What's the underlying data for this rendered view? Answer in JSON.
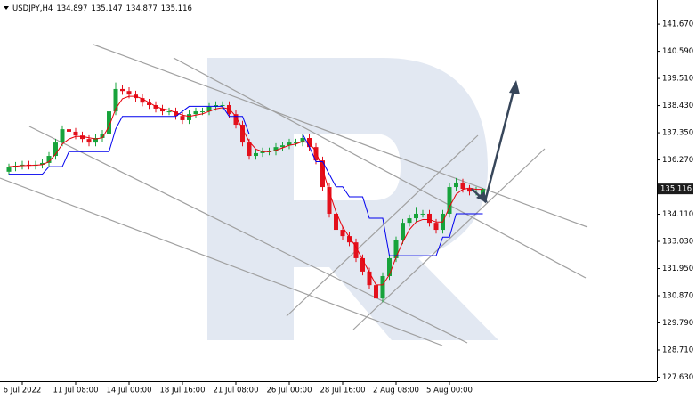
{
  "chart_data": {
    "type": "candlestick",
    "title": "USDJPY,H4",
    "categories": [
      null,
      null,
      "6 Jul 2022",
      null,
      null,
      null,
      null,
      null,
      null,
      null,
      "11 Jul 08:00",
      null,
      null,
      null,
      null,
      null,
      null,
      null,
      "14 Jul 00:00",
      null,
      null,
      null,
      null,
      null,
      null,
      null,
      "18 Jul 16:00",
      null,
      null,
      null,
      null,
      null,
      null,
      null,
      "21 Jul 08:00",
      null,
      null,
      null,
      null,
      null,
      null,
      null,
      "26 Jul 00:00",
      null,
      null,
      null,
      null,
      null,
      null,
      null,
      "28 Jul 16:00",
      null,
      null,
      null,
      null,
      null,
      null,
      null,
      "2 Aug 08:00",
      null,
      null,
      null,
      null,
      null,
      null,
      null,
      "5 Aug 00:00",
      null,
      null,
      null,
      null,
      null
    ],
    "open": [
      135.8,
      135.97,
      136.04,
      136.08,
      136.04,
      136.08,
      136.15,
      136.43,
      136.96,
      137.49,
      137.39,
      137.24,
      137.1,
      136.96,
      137.14,
      137.31,
      138.2,
      139.09,
      139.01,
      138.87,
      138.73,
      138.55,
      138.45,
      138.31,
      138.2,
      138.2,
      138.02,
      137.85,
      138.09,
      138.2,
      138.2,
      138.38,
      138.45,
      138.45,
      138.09,
      137.67,
      136.96,
      136.43,
      136.54,
      136.61,
      136.61,
      136.78,
      136.85,
      136.96,
      136.96,
      137.14,
      136.78,
      136.25,
      135.19,
      134.13,
      133.49,
      133.24,
      132.99,
      132.36,
      131.83,
      131.29,
      130.76,
      131.65,
      132.36,
      133.07,
      133.77,
      133.95,
      134.13,
      134.13,
      133.77,
      133.49,
      134.13,
      135.19,
      135.37,
      135.12,
      135.01,
      134.897
    ],
    "high": [
      136.12,
      136.19,
      136.23,
      136.23,
      136.23,
      136.3,
      136.58,
      137.11,
      137.64,
      137.64,
      137.54,
      137.39,
      137.25,
      137.29,
      137.46,
      138.35,
      139.35,
      139.24,
      139.16,
      139.02,
      138.88,
      138.7,
      138.6,
      138.46,
      138.35,
      138.35,
      138.17,
      138.24,
      138.35,
      138.35,
      138.53,
      138.6,
      138.6,
      138.6,
      138.24,
      137.82,
      137.11,
      136.69,
      136.76,
      136.76,
      136.93,
      137.0,
      137.11,
      137.11,
      137.29,
      137.29,
      136.93,
      136.4,
      135.34,
      134.28,
      133.64,
      133.39,
      133.14,
      132.51,
      131.98,
      131.44,
      131.8,
      132.51,
      133.22,
      133.92,
      134.1,
      134.4,
      134.28,
      134.28,
      133.92,
      134.28,
      135.34,
      135.55,
      135.52,
      135.27,
      135.2,
      135.147
    ],
    "low": [
      135.65,
      135.82,
      135.89,
      135.89,
      135.89,
      135.93,
      136.0,
      136.28,
      136.81,
      137.24,
      137.09,
      136.95,
      136.81,
      136.81,
      136.99,
      137.16,
      138.05,
      138.86,
      138.72,
      138.58,
      138.4,
      138.3,
      138.16,
      138.05,
      138.05,
      137.87,
      137.7,
      137.7,
      137.94,
      138.05,
      138.05,
      138.23,
      138.3,
      137.94,
      137.52,
      136.81,
      136.28,
      136.28,
      136.39,
      136.46,
      136.46,
      136.63,
      136.7,
      136.81,
      136.81,
      136.63,
      136.1,
      135.04,
      133.98,
      133.34,
      133.09,
      132.84,
      132.21,
      131.68,
      131.14,
      130.5,
      130.61,
      131.5,
      132.21,
      132.92,
      133.62,
      133.8,
      133.98,
      133.62,
      133.34,
      133.34,
      133.98,
      135.04,
      134.97,
      134.86,
      134.86,
      134.877
    ],
    "close": [
      135.97,
      136.04,
      136.08,
      136.04,
      136.08,
      136.15,
      136.43,
      136.96,
      137.49,
      137.39,
      137.24,
      137.1,
      136.96,
      137.14,
      137.31,
      138.2,
      139.09,
      139.01,
      138.87,
      138.73,
      138.55,
      138.45,
      138.31,
      138.2,
      138.2,
      138.02,
      137.85,
      138.09,
      138.2,
      138.2,
      138.38,
      138.45,
      138.45,
      138.09,
      137.67,
      136.96,
      136.43,
      136.54,
      136.61,
      136.61,
      136.78,
      136.85,
      136.96,
      136.96,
      137.14,
      136.78,
      136.25,
      135.19,
      134.13,
      133.49,
      133.24,
      132.99,
      132.36,
      131.83,
      131.29,
      130.76,
      131.65,
      132.36,
      133.07,
      133.77,
      133.95,
      134.13,
      134.13,
      133.77,
      133.49,
      134.13,
      135.19,
      135.37,
      135.12,
      135.01,
      135.05,
      135.116
    ],
    "up_color": "#17a33b",
    "down_color": "#e3101c",
    "overlays": [
      {
        "color": "#e8000b",
        "values": [
          136.0,
          136.02,
          136.04,
          136.05,
          136.06,
          136.08,
          136.2,
          136.5,
          136.9,
          137.1,
          137.2,
          137.2,
          137.15,
          137.1,
          137.15,
          137.6,
          138.3,
          138.7,
          138.8,
          138.8,
          138.7,
          138.55,
          138.4,
          138.3,
          138.25,
          138.15,
          138.05,
          138.0,
          138.05,
          138.1,
          138.2,
          138.3,
          138.35,
          138.3,
          138.0,
          137.5,
          137.0,
          136.7,
          136.6,
          136.6,
          136.65,
          136.75,
          136.85,
          136.9,
          137.0,
          136.95,
          136.6,
          135.9,
          135.0,
          134.2,
          133.6,
          133.2,
          132.8,
          132.3,
          131.8,
          131.3,
          131.3,
          131.7,
          132.4,
          133.0,
          133.5,
          133.8,
          133.9,
          133.9,
          133.8,
          133.8,
          134.4,
          134.9,
          135.1,
          135.15,
          135.1,
          135.1
        ]
      },
      {
        "color": "#0000ee",
        "values": [
          135.7,
          135.7,
          135.7,
          135.7,
          135.7,
          135.7,
          136.0,
          136.0,
          136.0,
          136.6,
          136.6,
          136.6,
          136.6,
          136.6,
          136.6,
          136.6,
          137.5,
          138.0,
          138.0,
          138.0,
          138.0,
          138.0,
          138.0,
          138.0,
          138.0,
          138.0,
          138.2,
          138.4,
          138.4,
          138.4,
          138.4,
          138.4,
          138.4,
          138.0,
          138.0,
          138.0,
          137.3,
          137.3,
          137.3,
          137.3,
          137.3,
          137.3,
          137.3,
          137.3,
          137.3,
          136.8,
          136.2,
          136.2,
          135.7,
          135.2,
          135.2,
          134.8,
          134.8,
          134.8,
          133.95,
          133.95,
          133.95,
          132.46,
          132.46,
          132.46,
          132.46,
          132.46,
          132.46,
          132.46,
          132.46,
          133.2,
          133.2,
          134.13,
          134.13,
          134.13,
          134.13,
          134.13
        ]
      }
    ],
    "ylim": [
      127.47,
      142.63
    ],
    "yticks": [
      {
        "value": 141.67,
        "label": "141.670"
      },
      {
        "value": 140.59,
        "label": "140.590"
      },
      {
        "value": 139.51,
        "label": "139.510"
      },
      {
        "value": 138.43,
        "label": "138.430"
      },
      {
        "value": 137.35,
        "label": "137.350"
      },
      {
        "value": 136.27,
        "label": "136.270"
      },
      {
        "value": 134.11,
        "label": "134.110"
      },
      {
        "value": 133.03,
        "label": "133.030"
      },
      {
        "value": 131.95,
        "label": "131.950"
      },
      {
        "value": 130.87,
        "label": "130.870"
      },
      {
        "value": 129.79,
        "label": "129.790"
      },
      {
        "value": 128.71,
        "label": "128.710"
      },
      {
        "value": 127.63,
        "label": "127.630"
      }
    ]
  }
}
